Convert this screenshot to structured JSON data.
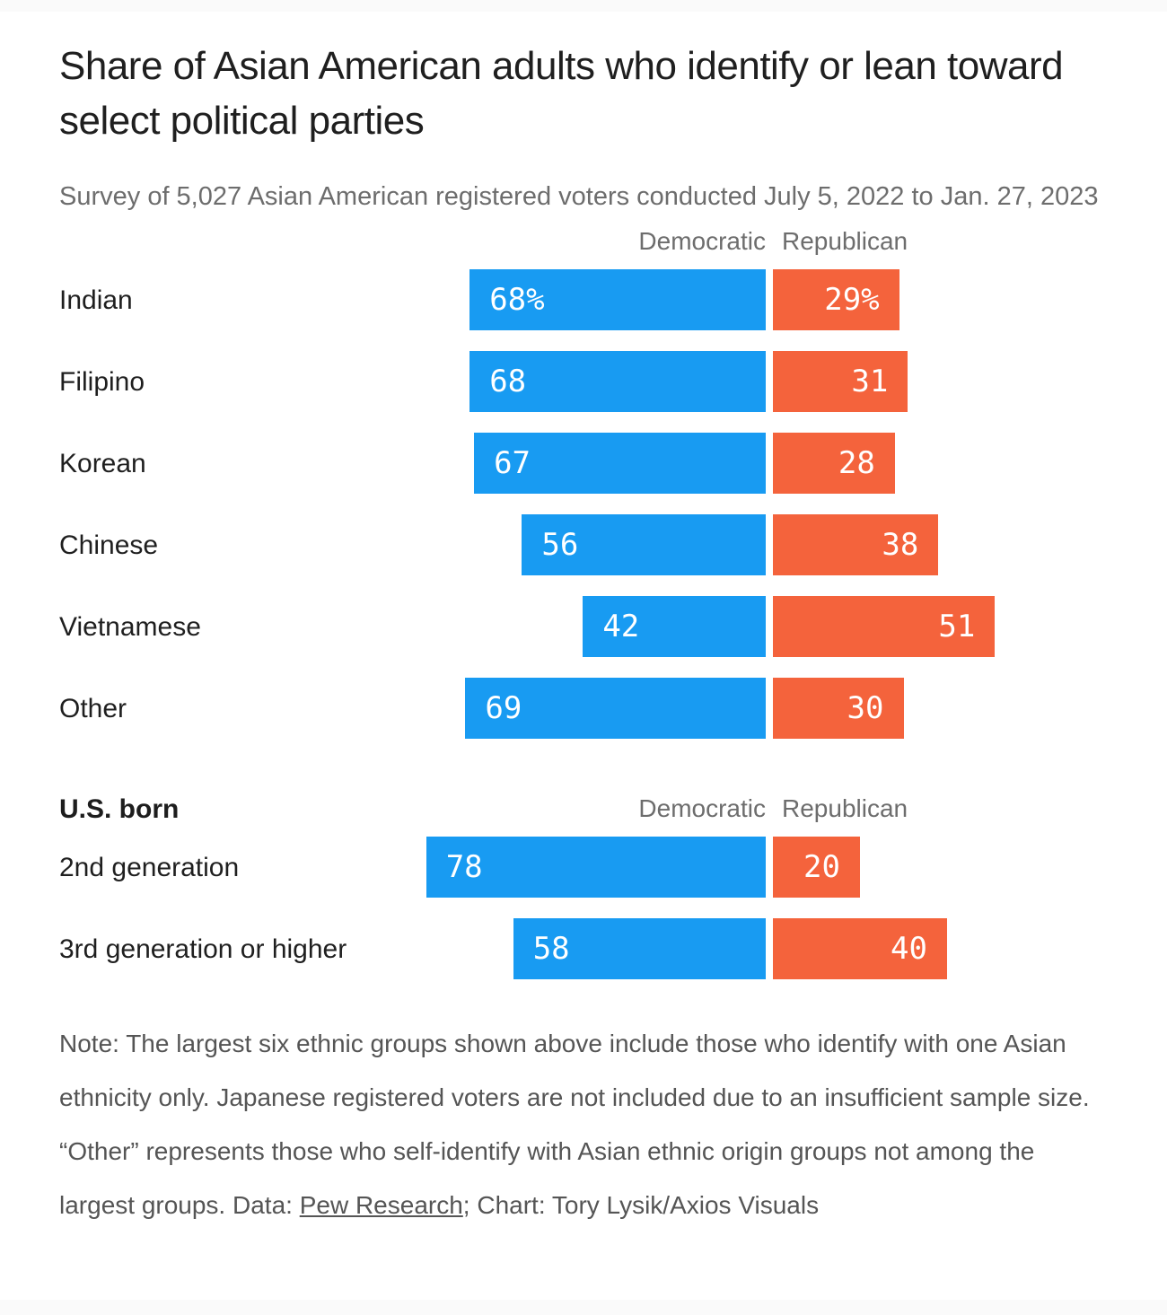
{
  "chart_data": {
    "type": "bar",
    "variant": "diverging-horizontal",
    "unit": "percent",
    "title": "Share of Asian American adults who identify or lean toward select political parties",
    "subtitle": "Survey of 5,027 Asian American registered voters conducted July 5, 2022 to Jan. 27, 2023",
    "legend_position": "column headers above bars, repeated per section",
    "grid": false,
    "column_headers": {
      "democratic": "Democratic",
      "republican": "Republican"
    },
    "colors": {
      "democratic": "#189BF2",
      "republican": "#F4633C"
    },
    "value_range": [
      0,
      100
    ],
    "sections": [
      {
        "heading": "",
        "rows": [
          {
            "category": "Indian",
            "democratic": 68,
            "republican": 29,
            "democratic_label": "68%",
            "republican_label": "29%"
          },
          {
            "category": "Filipino",
            "democratic": 68,
            "republican": 31,
            "democratic_label": "68",
            "republican_label": "31"
          },
          {
            "category": "Korean",
            "democratic": 67,
            "republican": 28,
            "democratic_label": "67",
            "republican_label": "28"
          },
          {
            "category": "Chinese",
            "democratic": 56,
            "republican": 38,
            "democratic_label": "56",
            "republican_label": "38"
          },
          {
            "category": "Vietnamese",
            "democratic": 42,
            "republican": 51,
            "democratic_label": "42",
            "republican_label": "51"
          },
          {
            "category": "Other",
            "democratic": 69,
            "republican": 30,
            "democratic_label": "69",
            "republican_label": "30"
          }
        ]
      },
      {
        "heading": "U.S. born",
        "rows": [
          {
            "category": "2nd generation",
            "democratic": 78,
            "republican": 20,
            "democratic_label": "78",
            "republican_label": "20"
          },
          {
            "category": "3rd generation or higher",
            "democratic": 58,
            "republican": 40,
            "democratic_label": "58",
            "republican_label": "40"
          }
        ]
      }
    ]
  },
  "footnote": {
    "text_before_link": "Note: The largest six ethnic groups shown above include those who identify with one Asian ethnicity only. Japanese registered voters are not included due to an insufficient sample size. “Other” represents those who self-identify with Asian ethnic origin groups not among the largest groups. Data: ",
    "link_text": "Pew Research",
    "text_after_link": "; Chart: Tory Lysik/Axios Visuals"
  }
}
